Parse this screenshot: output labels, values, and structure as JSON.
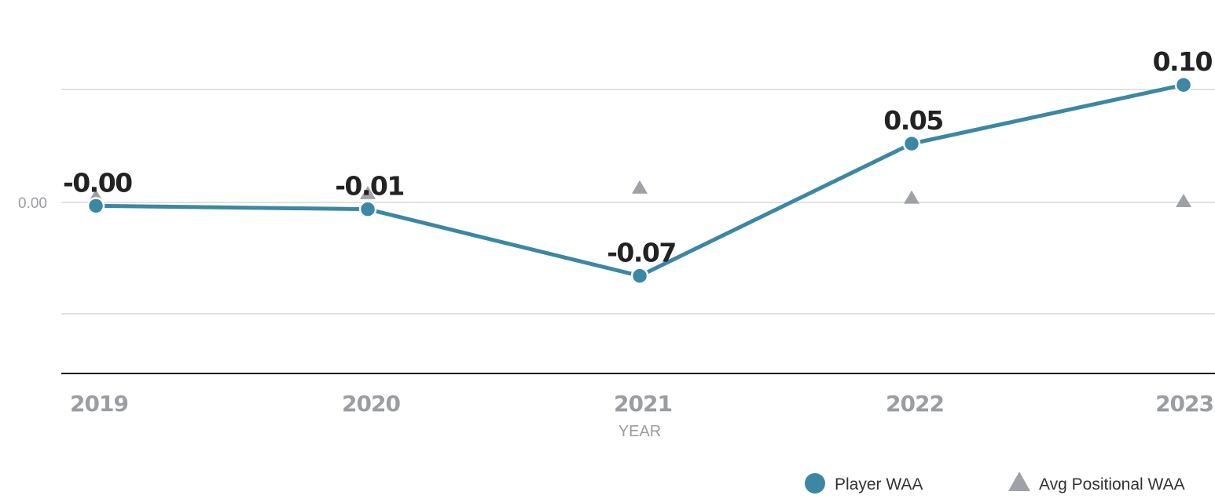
{
  "chart_data": {
    "type": "line",
    "xlabel": "YEAR",
    "ylabel": "",
    "categories": [
      "2019",
      "2020",
      "2021",
      "2022",
      "2023"
    ],
    "ylim": [
      -0.19,
      0.2
    ],
    "yticks": [
      0.0
    ],
    "ytick_labels": [
      "0.00"
    ],
    "grid": true,
    "legend_position": "bottom-right",
    "series": [
      {
        "name": "Player WAA",
        "values": [
          -0.003,
          -0.006,
          -0.065,
          0.052,
          0.104
        ],
        "data_labels": [
          "-0.00",
          "-0.01",
          "-0.07",
          "0.05",
          "0.10"
        ],
        "color": "#3b87a4",
        "marker": "circle"
      },
      {
        "name": "Avg Positional WAA",
        "values": [
          0.004,
          0.007,
          0.012,
          0.003,
          0.0
        ],
        "color": "#9ea1a5",
        "marker": "triangle"
      }
    ]
  }
}
